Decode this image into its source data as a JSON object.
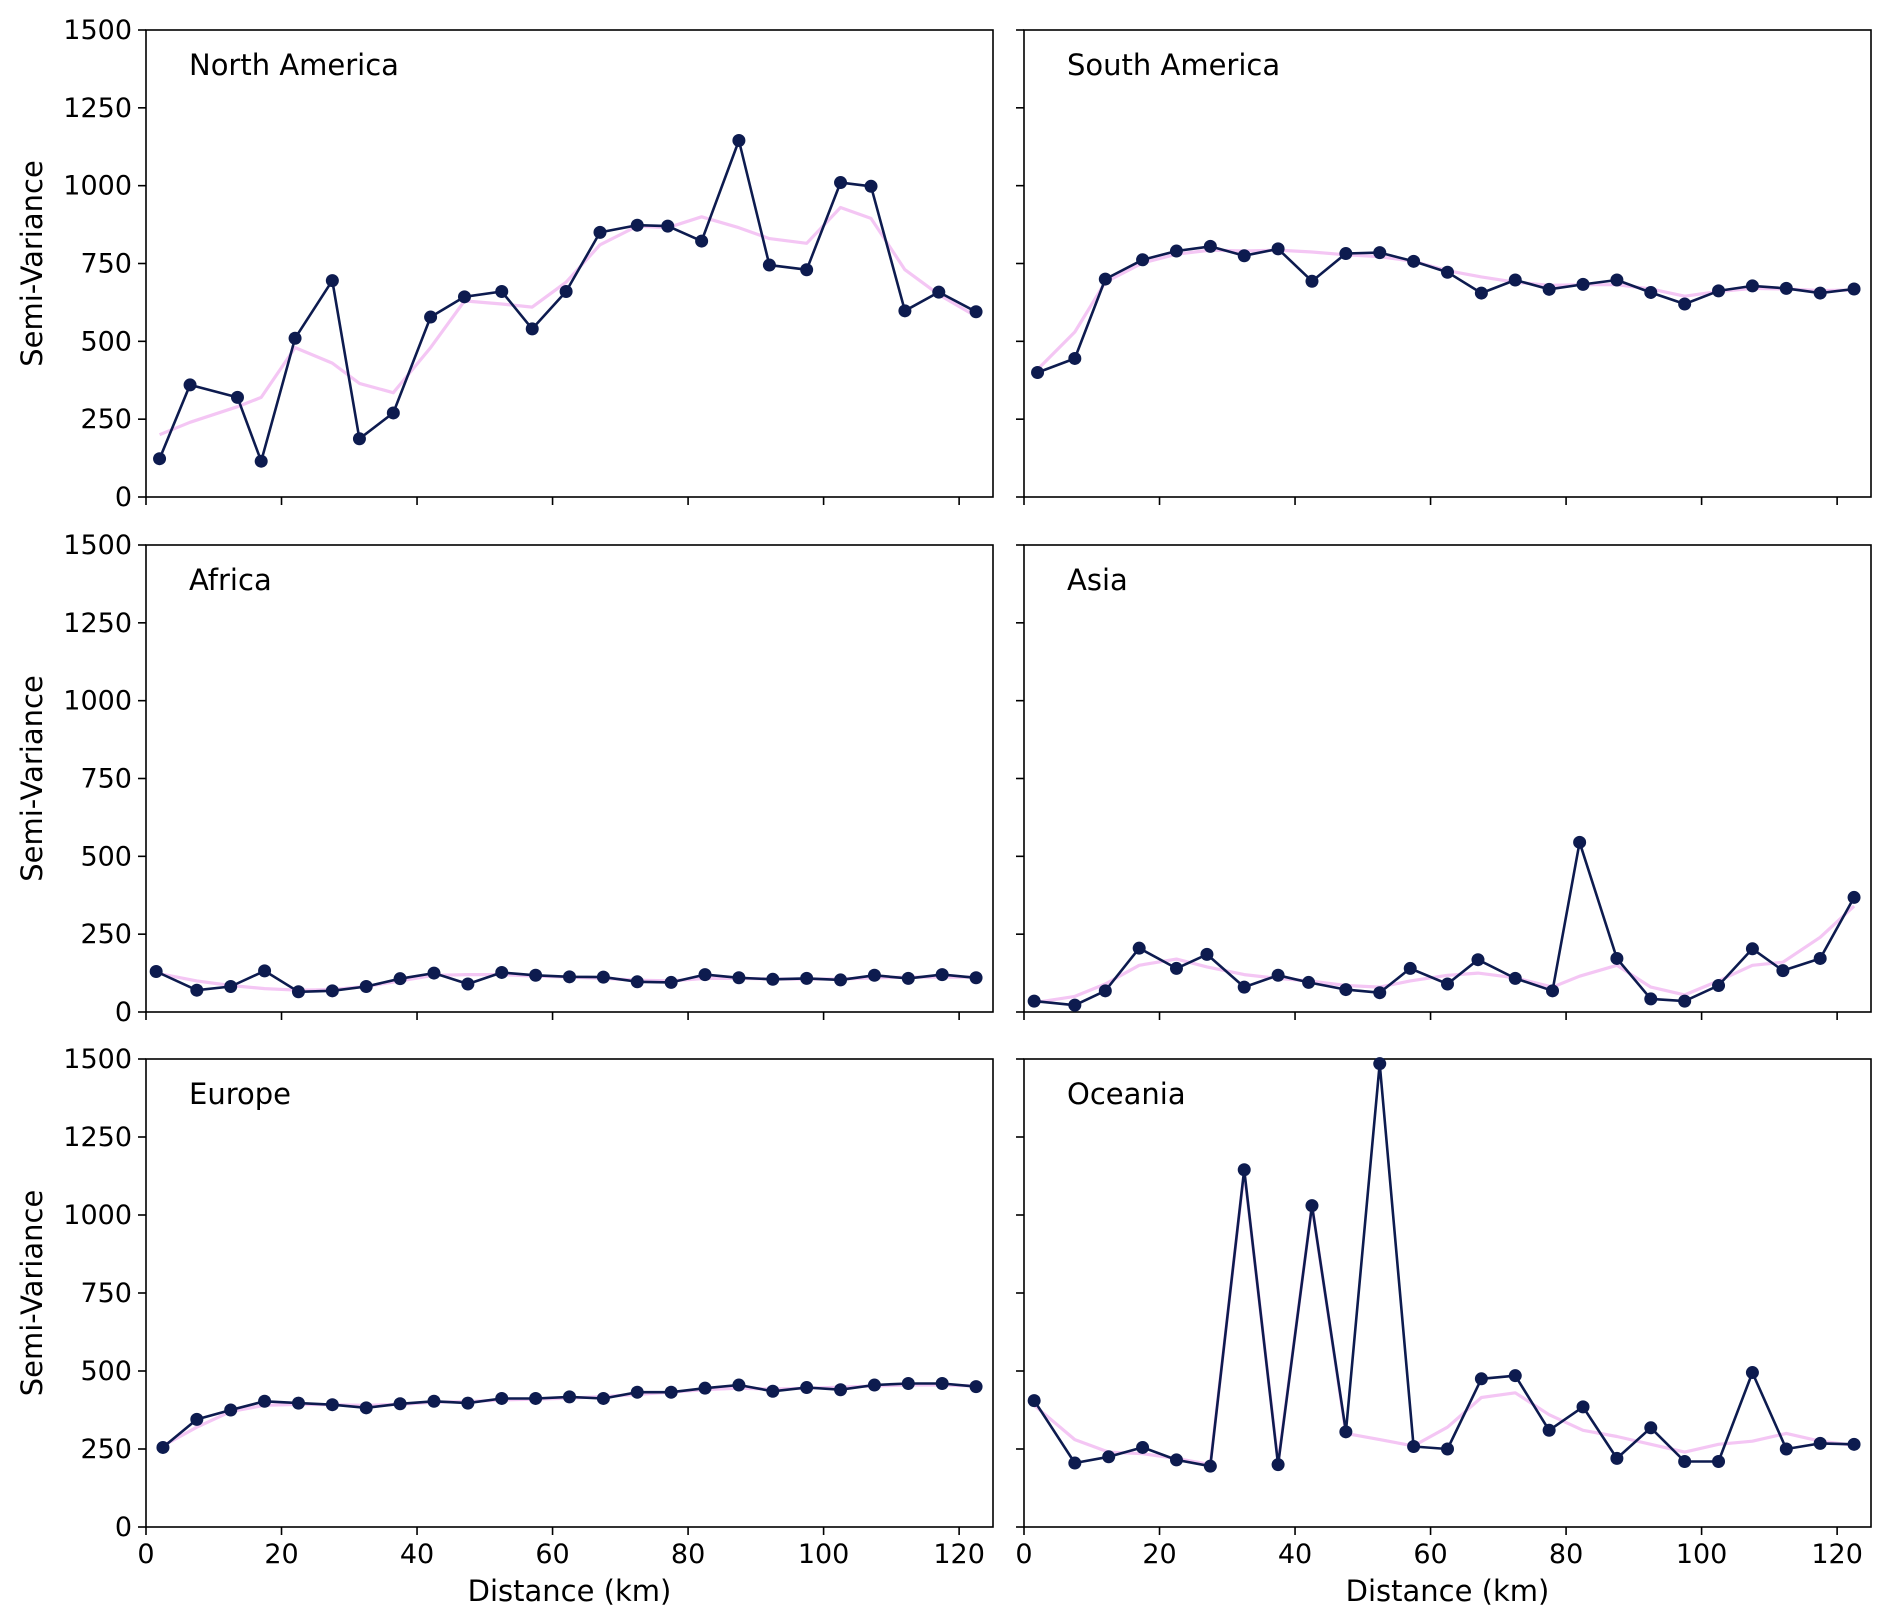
{
  "figure": {
    "line_color": "#0d1b4f",
    "smooth_color": "#f4c6f4"
  },
  "chart_data": [
    {
      "type": "line",
      "title": "North America",
      "xlabel": "",
      "ylabel": "Semi-Variance",
      "xlim": [
        0,
        125
      ],
      "ylim": [
        0,
        1500
      ],
      "xticks": [
        0,
        20,
        40,
        60,
        80,
        100,
        120
      ],
      "yticks": [
        0,
        250,
        500,
        750,
        1000,
        1250,
        1500
      ],
      "series": [
        {
          "x": [
            2,
            6.5,
            13.5,
            17,
            22,
            27.5,
            31.5,
            36.5,
            42,
            47,
            52.5,
            57,
            62,
            67,
            72.5,
            77,
            82,
            87.5,
            92,
            97.5,
            102.5,
            107,
            112,
            117,
            122.5
          ],
          "y": [
            123,
            360,
            320,
            115,
            510,
            695,
            187,
            270,
            578,
            643,
            660,
            540,
            660,
            850,
            873,
            870,
            822,
            1145,
            745,
            730,
            1010,
            998,
            598,
            658,
            595
          ]
        },
        {
          "x": [
            2,
            6.5,
            13.5,
            17,
            22,
            27.5,
            31.5,
            36.5,
            42,
            47,
            52.5,
            57,
            62,
            67,
            72.5,
            77,
            82,
            87.5,
            92,
            97.5,
            102.5,
            107,
            112,
            117,
            122.5
          ],
          "y": [
            200,
            240,
            290,
            320,
            480,
            430,
            365,
            335,
            480,
            630,
            620,
            610,
            690,
            810,
            870,
            865,
            900,
            865,
            830,
            815,
            930,
            895,
            730,
            650,
            580
          ]
        }
      ]
    },
    {
      "type": "line",
      "title": "South America",
      "xlabel": "",
      "ylabel": "",
      "xlim": [
        0,
        125
      ],
      "ylim": [
        0,
        1500
      ],
      "xticks": [
        0,
        20,
        40,
        60,
        80,
        100,
        120
      ],
      "yticks": [
        0,
        250,
        500,
        750,
        1000,
        1250,
        1500
      ],
      "series": [
        {
          "x": [
            2,
            7.5,
            12,
            17.5,
            22.5,
            27.5,
            32.5,
            37.5,
            42.5,
            47.5,
            52.5,
            57.5,
            62.5,
            67.5,
            72.5,
            77.5,
            82.5,
            87.5,
            92.5,
            97.5,
            102.5,
            107.5,
            112.5,
            117.5,
            122.5
          ],
          "y": [
            400,
            445,
            700,
            762,
            790,
            805,
            775,
            797,
            693,
            782,
            785,
            757,
            722,
            655,
            697,
            667,
            683,
            697,
            657,
            620,
            662,
            678,
            670,
            655,
            668
          ]
        },
        {
          "x": [
            2,
            7.5,
            12,
            17.5,
            22.5,
            27.5,
            32.5,
            37.5,
            42.5,
            47.5,
            52.5,
            57.5,
            62.5,
            67.5,
            72.5,
            77.5,
            82.5,
            87.5,
            92.5,
            97.5,
            102.5,
            107.5,
            112.5,
            117.5,
            122.5
          ],
          "y": [
            410,
            530,
            690,
            752,
            780,
            793,
            790,
            793,
            787,
            778,
            772,
            757,
            727,
            707,
            690,
            680,
            682,
            682,
            668,
            645,
            660,
            670,
            668,
            663,
            665
          ]
        }
      ]
    },
    {
      "type": "line",
      "title": "Africa",
      "xlabel": "",
      "ylabel": "Semi-Variance",
      "xlim": [
        0,
        125
      ],
      "ylim": [
        0,
        1500
      ],
      "xticks": [
        0,
        20,
        40,
        60,
        80,
        100,
        120
      ],
      "yticks": [
        0,
        250,
        500,
        750,
        1000,
        1250,
        1500
      ],
      "series": [
        {
          "x": [
            1.5,
            7.5,
            12.5,
            17.5,
            22.5,
            27.5,
            32.5,
            37.5,
            42.5,
            47.5,
            52.5,
            57.5,
            62.5,
            67.5,
            72.5,
            77.5,
            82.5,
            87.5,
            92.5,
            97.5,
            102.5,
            107.5,
            112.5,
            117.5,
            122.5
          ],
          "y": [
            130,
            70,
            82,
            132,
            65,
            68,
            82,
            107,
            125,
            90,
            127,
            118,
            113,
            112,
            97,
            95,
            120,
            110,
            105,
            108,
            103,
            118,
            108,
            120,
            110
          ]
        },
        {
          "x": [
            1.5,
            7.5,
            12.5,
            17.5,
            22.5,
            27.5,
            32.5,
            37.5,
            42.5,
            47.5,
            52.5,
            57.5,
            62.5,
            67.5,
            72.5,
            77.5,
            82.5,
            87.5,
            92.5,
            97.5,
            102.5,
            107.5,
            112.5,
            117.5,
            122.5
          ],
          "y": [
            125,
            100,
            85,
            75,
            70,
            72,
            82,
            100,
            118,
            120,
            120,
            115,
            112,
            108,
            102,
            100,
            108,
            108,
            106,
            106,
            106,
            110,
            112,
            112,
            112
          ]
        }
      ]
    },
    {
      "type": "line",
      "title": "Asia",
      "xlabel": "",
      "ylabel": "",
      "xlim": [
        0,
        125
      ],
      "ylim": [
        0,
        1500
      ],
      "xticks": [
        0,
        20,
        40,
        60,
        80,
        100,
        120
      ],
      "yticks": [
        0,
        250,
        500,
        750,
        1000,
        1250,
        1500
      ],
      "series": [
        {
          "x": [
            1.5,
            7.5,
            12,
            17,
            22.5,
            27,
            32.5,
            37.5,
            42,
            47.5,
            52.5,
            57,
            62.5,
            67,
            72.5,
            78,
            82,
            87.5,
            92.5,
            97.5,
            102.5,
            107.5,
            112,
            117.5,
            122.5
          ],
          "y": [
            35,
            22,
            68,
            205,
            140,
            185,
            80,
            118,
            95,
            72,
            62,
            140,
            90,
            168,
            108,
            68,
            545,
            172,
            42,
            35,
            85,
            203,
            133,
            172,
            368
          ]
        },
        {
          "x": [
            1.5,
            7.5,
            12,
            17,
            22.5,
            27,
            32.5,
            37.5,
            42,
            47.5,
            52.5,
            57,
            62.5,
            67,
            72.5,
            78,
            82,
            87.5,
            92.5,
            97.5,
            102.5,
            107.5,
            112,
            117.5,
            122.5
          ],
          "y": [
            30,
            50,
            90,
            150,
            170,
            145,
            120,
            108,
            100,
            85,
            80,
            100,
            118,
            125,
            110,
            80,
            115,
            150,
            80,
            55,
            100,
            150,
            160,
            240,
            340
          ]
        }
      ]
    },
    {
      "type": "line",
      "title": "Europe",
      "xlabel": "Distance (km)",
      "ylabel": "Semi-Variance",
      "xlim": [
        0,
        125
      ],
      "ylim": [
        0,
        1500
      ],
      "xticks": [
        0,
        20,
        40,
        60,
        80,
        100,
        120
      ],
      "yticks": [
        0,
        250,
        500,
        750,
        1000,
        1250,
        1500
      ],
      "series": [
        {
          "x": [
            2.5,
            7.5,
            12.5,
            17.5,
            22.5,
            27.5,
            32.5,
            37.5,
            42.5,
            47.5,
            52.5,
            57.5,
            62.5,
            67.5,
            72.5,
            77.5,
            82.5,
            87.5,
            92.5,
            97.5,
            102.5,
            107.5,
            112.5,
            117.5,
            122.5
          ],
          "y": [
            255,
            345,
            375,
            403,
            397,
            392,
            382,
            395,
            403,
            397,
            412,
            412,
            417,
            412,
            432,
            432,
            445,
            455,
            435,
            447,
            440,
            455,
            460,
            460,
            450
          ]
        },
        {
          "x": [
            2.5,
            7.5,
            12.5,
            17.5,
            22.5,
            27.5,
            32.5,
            37.5,
            42.5,
            47.5,
            52.5,
            57.5,
            62.5,
            67.5,
            72.5,
            77.5,
            82.5,
            87.5,
            92.5,
            97.5,
            102.5,
            107.5,
            112.5,
            117.5,
            122.5
          ],
          "y": [
            260,
            320,
            370,
            390,
            393,
            392,
            390,
            393,
            400,
            402,
            407,
            410,
            413,
            418,
            425,
            432,
            440,
            445,
            442,
            445,
            448,
            452,
            455,
            455,
            452
          ]
        }
      ]
    },
    {
      "type": "line",
      "title": "Oceania",
      "xlabel": "Distance (km)",
      "ylabel": "",
      "xlim": [
        0,
        125
      ],
      "ylim": [
        0,
        1500
      ],
      "xticks": [
        0,
        20,
        40,
        60,
        80,
        100,
        120
      ],
      "yticks": [
        0,
        250,
        500,
        750,
        1000,
        1250,
        1500
      ],
      "series": [
        {
          "x": [
            1.5,
            7.5,
            12.5,
            17.5,
            22.5,
            27.5,
            32.5,
            37.5,
            42.5,
            47.5,
            52.5,
            57.5,
            62.5,
            67.5,
            72.5,
            77.5,
            82.5,
            87.5,
            92.5,
            97.5,
            102.5,
            107.5,
            112.5,
            117.5,
            122.5
          ],
          "y": [
            405,
            205,
            225,
            255,
            215,
            195,
            1145,
            200,
            1030,
            305,
            1485,
            258,
            250,
            475,
            485,
            310,
            385,
            220,
            318,
            210,
            210,
            495,
            250,
            268,
            265
          ]
        },
        {
          "x": [
            1.5,
            7.5,
            12.5,
            17.5,
            22.5,
            27.5,
            32.5,
            37.5,
            42.5,
            47.5,
            52.5,
            57.5,
            62.5,
            67.5,
            72.5,
            77.5,
            82.5,
            87.5,
            92.5,
            97.5,
            102.5,
            107.5,
            112.5,
            117.5,
            122.5
          ],
          "y": [
            390,
            280,
            240,
            235,
            220,
            200,
            1140,
            205,
            1030,
            300,
            280,
            260,
            320,
            415,
            430,
            360,
            310,
            290,
            265,
            240,
            265,
            275,
            300,
            275,
            262
          ]
        }
      ]
    }
  ]
}
